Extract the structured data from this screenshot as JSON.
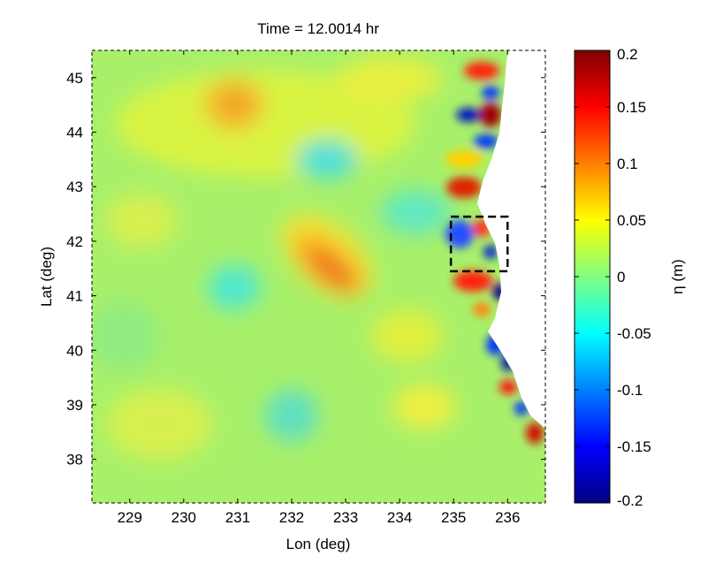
{
  "chart_data": {
    "type": "heatmap",
    "title": "Time = 12.0014 hr",
    "xlabel": "Lon (deg)",
    "ylabel": "Lat (deg)",
    "xlim": [
      228.3,
      236.7
    ],
    "ylim": [
      37.2,
      45.5
    ],
    "x_ticks": [
      229,
      230,
      231,
      232,
      233,
      234,
      235,
      236
    ],
    "y_ticks": [
      38,
      39,
      40,
      41,
      42,
      43,
      44,
      45
    ],
    "colorbar": {
      "label": "η (m)",
      "range": [
        -0.2,
        0.2
      ],
      "ticks": [
        0.2,
        0.15,
        0.1,
        0.05,
        0,
        -0.05,
        -0.1,
        -0.15,
        -0.2
      ],
      "tick_labels": [
        "0.2",
        "0.15",
        "0.1",
        "0.05",
        "0",
        "-0.05",
        "-0.1",
        "-0.15",
        "-0.2"
      ],
      "colormap": "jet"
    },
    "highlight_box": {
      "lon": [
        234.95,
        236.0
      ],
      "lat": [
        41.45,
        42.45
      ],
      "style": "dashed"
    },
    "land_color": "#ffffff"
  }
}
